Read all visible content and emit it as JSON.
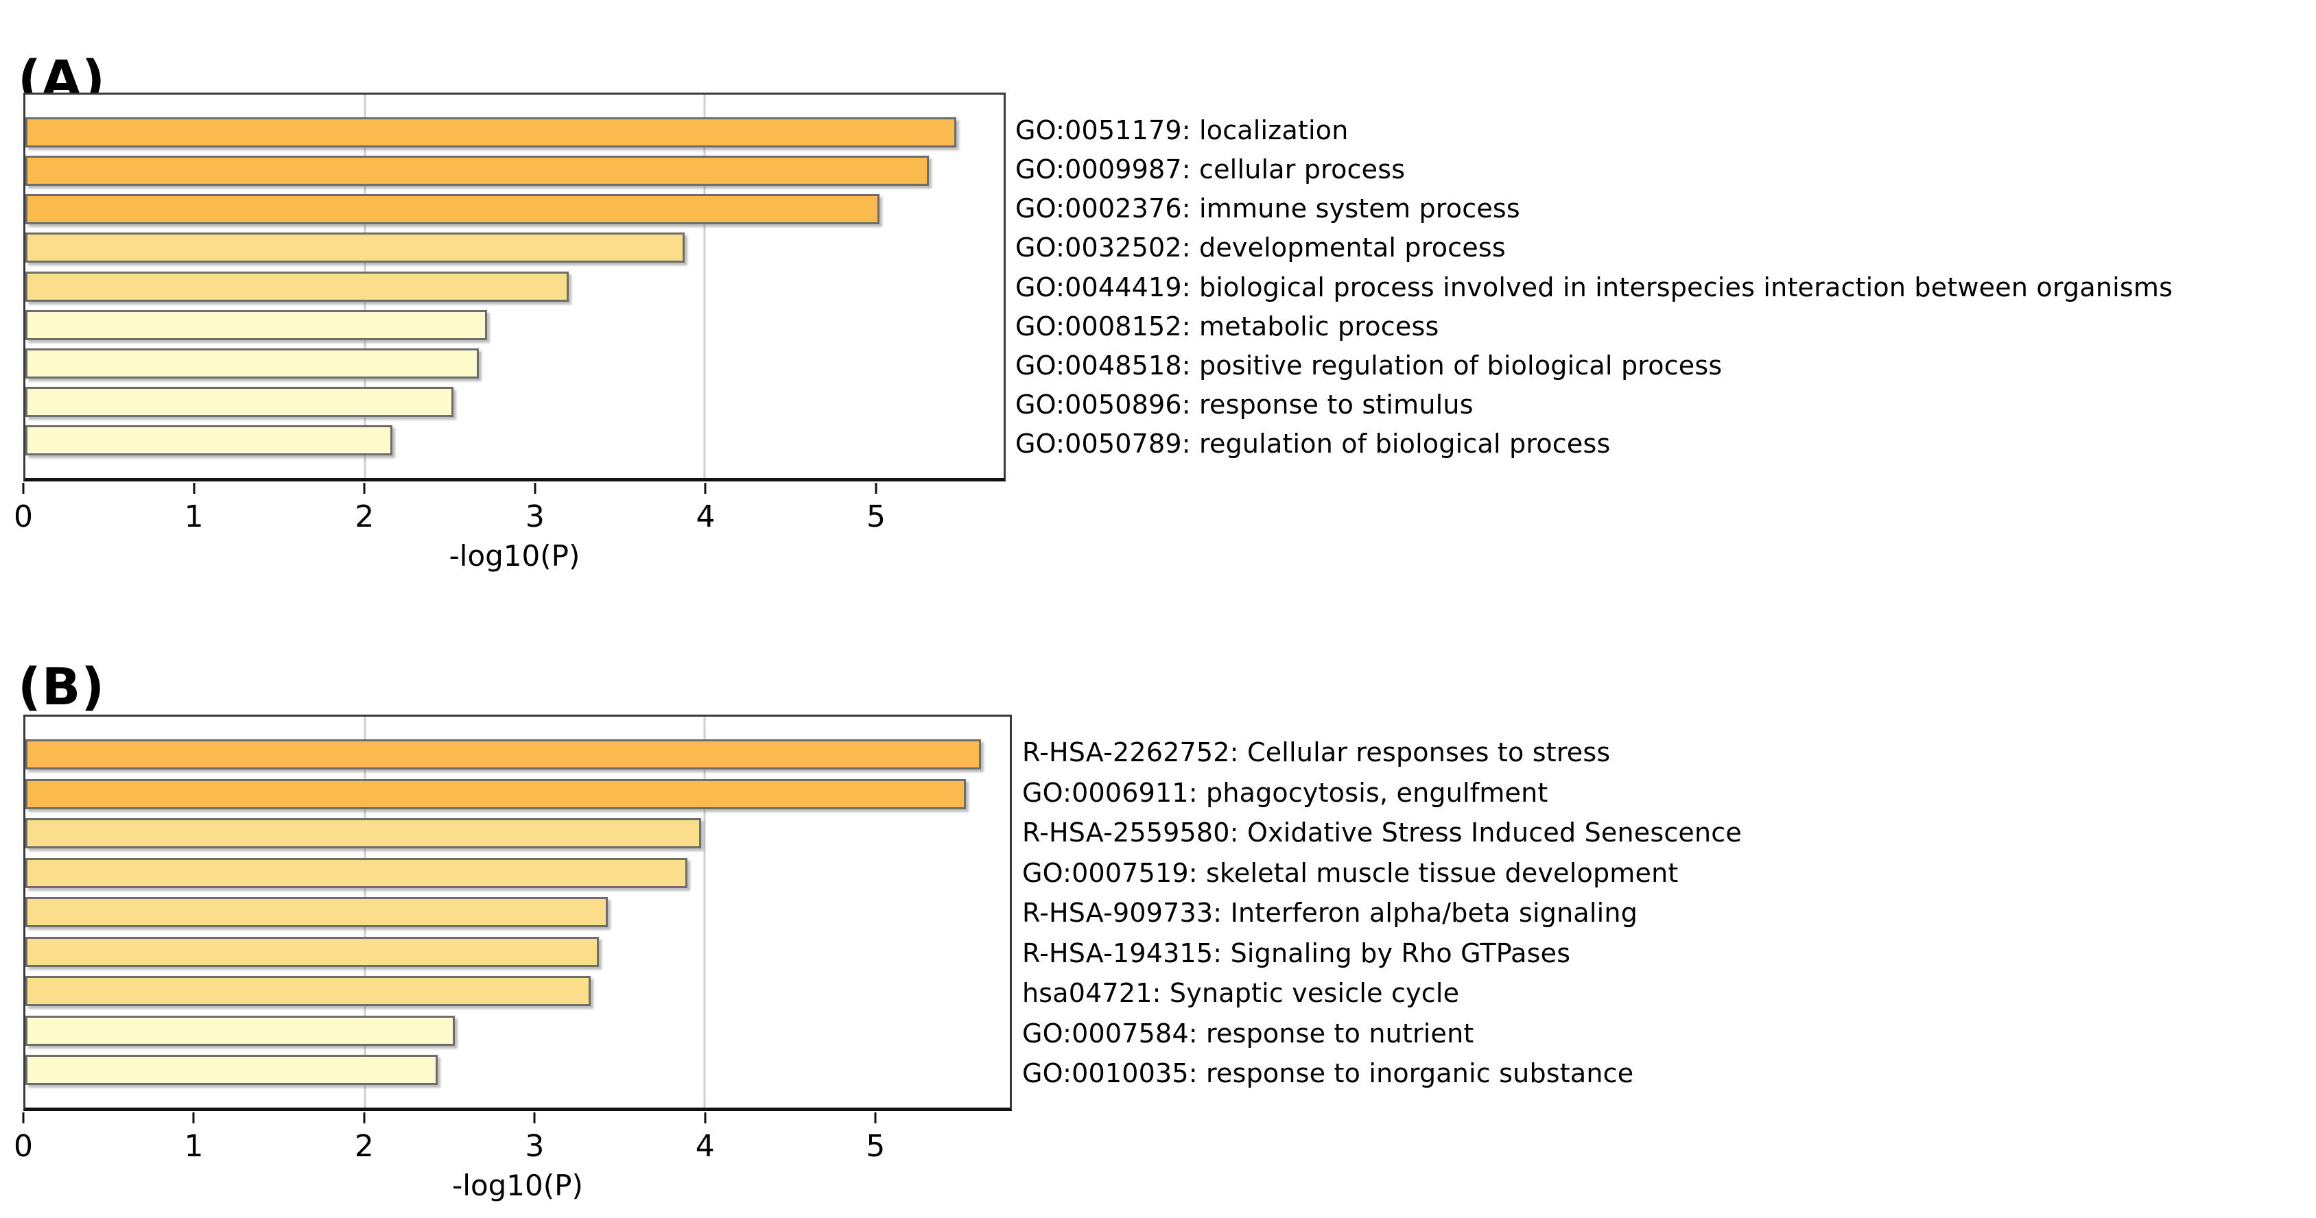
{
  "chart_data": [
    {
      "type": "bar",
      "panel": "A",
      "title": "(A)",
      "xlabel": "-log10(P)",
      "orientation": "horizontal",
      "xlim": [
        0,
        5.76
      ],
      "xticks": [
        0,
        1,
        2,
        3,
        4,
        5
      ],
      "gridlines_x": [
        2,
        4
      ],
      "legend": "none",
      "categories": [
        "GO:0051179: localization",
        "GO:0009987: cellular process",
        "GO:0002376: immune system process",
        "GO:0032502: developmental process",
        "GO:0044419: biological process involved in interspecies interaction between organisms",
        "GO:0008152: metabolic process",
        "GO:0048518: positive regulation of biological process",
        "GO:0050896: response to stimulus",
        "GO:0050789: regulation of biological process"
      ],
      "values": [
        5.48,
        5.32,
        5.03,
        3.88,
        3.2,
        2.72,
        2.67,
        2.52,
        2.16
      ],
      "bar_colors": [
        "#FBBA4E",
        "#FBBA4E",
        "#FBBA4E",
        "#FBDE8C",
        "#FBDE8C",
        "#FDFACC",
        "#FDFACC",
        "#FDFACC",
        "#FDFACC"
      ]
    },
    {
      "type": "bar",
      "panel": "B",
      "title": "(B)",
      "xlabel": "-log10(P)",
      "orientation": "horizontal",
      "xlim": [
        0,
        5.8
      ],
      "xticks": [
        0,
        1,
        2,
        3,
        4,
        5
      ],
      "gridlines_x": [
        2,
        4
      ],
      "legend": "none",
      "categories": [
        "R-HSA-2262752: Cellular responses to stress",
        "GO:0006911: phagocytosis, engulfment",
        "R-HSA-2559580: Oxidative Stress Induced Senescence",
        "GO:0007519: skeletal muscle tissue development",
        "R-HSA-909733: Interferon alpha/beta signaling",
        "R-HSA-194315: Signaling by Rho GTPases",
        "hsa04721: Synaptic vesicle cycle",
        "GO:0007584: response to nutrient",
        "GO:0010035: response to inorganic substance"
      ],
      "values": [
        5.63,
        5.54,
        3.98,
        3.9,
        3.43,
        3.38,
        3.33,
        2.53,
        2.43
      ],
      "bar_colors": [
        "#FBBA4E",
        "#FBBA4E",
        "#FBDE8C",
        "#FBDE8C",
        "#FBDE8C",
        "#FBDE8C",
        "#FBDE8C",
        "#FDFACC",
        "#FDFACC"
      ]
    }
  ],
  "style": {
    "bar_border_color": "#6d6d6d",
    "gridline_color": "#cfcfcf",
    "spine_color": "#3a3a3a",
    "axis_color": "#111111",
    "background": "#ffffff",
    "text_color": "#000000"
  }
}
